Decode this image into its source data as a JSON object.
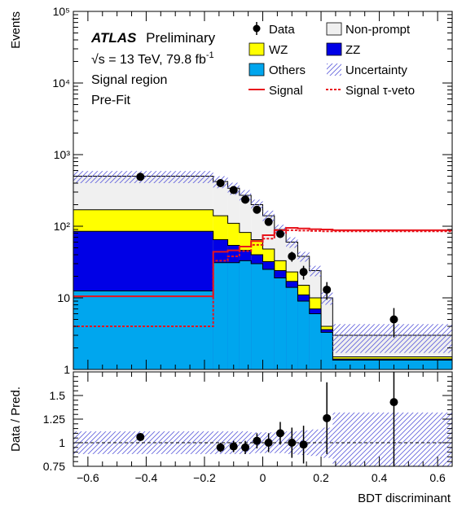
{
  "labels": {
    "atlas": "ATLAS",
    "preliminary": "Preliminary",
    "energy_prefix": "√s = 13 TeV, 79.8 fb",
    "energy_exp": "-1",
    "region": "Signal region",
    "fit": "Pre-Fit",
    "y_top": "Events",
    "y_bottom": "Data / Pred.",
    "x": "BDT discriminant"
  },
  "legend": [
    {
      "key": "data",
      "label": "Data",
      "color": "#000000"
    },
    {
      "key": "nonprompt",
      "label": "Non-prompt",
      "color": "#f0f0f0"
    },
    {
      "key": "wz",
      "label": "WZ",
      "color": "#ffff00"
    },
    {
      "key": "zz",
      "label": "ZZ",
      "color": "#0000e6"
    },
    {
      "key": "others",
      "label": "Others",
      "color": "#00a6ee"
    },
    {
      "key": "unc",
      "label": "Uncertainty",
      "color": "#6666dd"
    },
    {
      "key": "signal",
      "label": "Signal",
      "color": "#e8141c"
    },
    {
      "key": "signal_tauveto",
      "label": "Signal τ-veto",
      "color": "#e8141c"
    }
  ],
  "chart_data": [
    {
      "type": "histogram",
      "panel": "main",
      "x_range": [
        -0.65,
        0.65
      ],
      "y_range": [
        1,
        100000
      ],
      "y_scale": "log",
      "y_ticks": [
        {
          "v": 10,
          "label": "10"
        },
        {
          "v": 100,
          "label": "10²"
        },
        {
          "v": 1000,
          "label": "10³"
        },
        {
          "v": 10000,
          "label": "10⁴"
        },
        {
          "v": 100000,
          "label": "10⁵"
        }
      ],
      "bin_edges": [
        -0.65,
        -0.17,
        -0.12,
        -0.08,
        -0.04,
        0.0,
        0.04,
        0.08,
        0.12,
        0.16,
        0.2,
        0.24,
        0.65
      ],
      "stack": [
        {
          "name": "Others",
          "color": "#00a6ee",
          "cumulative": [
            12.5,
            31,
            31,
            33,
            30,
            25,
            19,
            14,
            9,
            6,
            3.3,
            1.35
          ]
        },
        {
          "name": "ZZ",
          "color": "#0000e6",
          "cumulative": [
            85,
            65,
            54,
            46,
            40,
            32,
            24,
            17,
            11,
            7,
            3.6,
            1.4
          ]
        },
        {
          "name": "WZ",
          "color": "#ffff00",
          "cumulative": [
            170,
            140,
            110,
            82,
            65,
            48,
            33,
            23,
            15,
            10,
            4,
            1.5
          ]
        },
        {
          "name": "Non-prompt",
          "color": "#f0f0f0",
          "cumulative": [
            500,
            420,
            340,
            270,
            200,
            140,
            90,
            60,
            38,
            24,
            10,
            3
          ]
        }
      ],
      "uncertainty_band": {
        "low": [
          400,
          340,
          275,
          220,
          165,
          115,
          75,
          50,
          32,
          20,
          8,
          1.7
        ],
        "high": [
          590,
          500,
          405,
          320,
          235,
          165,
          105,
          70,
          44,
          28,
          12,
          4.3
        ]
      },
      "signal": [
        10.5,
        44,
        46,
        52,
        62,
        75,
        88,
        95,
        93,
        91,
        90,
        88
      ],
      "signal_tauveto": [
        4,
        33,
        38,
        45,
        55,
        67,
        80,
        88,
        87,
        86,
        85,
        85
      ],
      "data": [
        {
          "x": -0.42,
          "y": 490,
          "err": 22
        },
        {
          "x": -0.145,
          "y": 400,
          "err": 20
        },
        {
          "x": -0.1,
          "y": 320,
          "err": 18
        },
        {
          "x": -0.06,
          "y": 235,
          "err": 15
        },
        {
          "x": -0.02,
          "y": 170,
          "err": 13
        },
        {
          "x": 0.02,
          "y": 115,
          "err": 11
        },
        {
          "x": 0.06,
          "y": 78,
          "err": 9
        },
        {
          "x": 0.1,
          "y": 38,
          "err": 6
        },
        {
          "x": 0.14,
          "y": 23,
          "err": 5
        },
        {
          "x": 0.22,
          "y": 13,
          "err": 3.6
        },
        {
          "x": 0.45,
          "y": 5,
          "err": 2.2
        }
      ]
    },
    {
      "type": "ratio",
      "panel": "ratio",
      "x_range": [
        -0.65,
        0.65
      ],
      "y_range": [
        0.75,
        1.75
      ],
      "y_ticks": [
        {
          "v": 0.75,
          "label": "0.75"
        },
        {
          "v": 1,
          "label": "1"
        },
        {
          "v": 1.25,
          "label": "1.25"
        },
        {
          "v": 1.5,
          "label": "1.5"
        }
      ],
      "x_ticks": [
        {
          "v": -0.6,
          "label": "−0.6"
        },
        {
          "v": -0.4,
          "label": "−0.4"
        },
        {
          "v": -0.2,
          "label": "−0.2"
        },
        {
          "v": 0,
          "label": "0"
        },
        {
          "v": 0.2,
          "label": "0.2"
        },
        {
          "v": 0.4,
          "label": "0.4"
        },
        {
          "v": 0.6,
          "label": "0.6"
        }
      ],
      "band_low": [
        0.88,
        0.88,
        0.88,
        0.88,
        0.89,
        0.89,
        0.89,
        0.88,
        0.87,
        0.86,
        0.84,
        0.68
      ],
      "band_high": [
        1.12,
        1.12,
        1.12,
        1.12,
        1.11,
        1.11,
        1.11,
        1.12,
        1.13,
        1.14,
        1.16,
        1.32
      ],
      "points": [
        {
          "x": -0.42,
          "y": 1.06,
          "err": 0.04
        },
        {
          "x": -0.145,
          "y": 0.95,
          "err": 0.05
        },
        {
          "x": -0.1,
          "y": 0.96,
          "err": 0.06
        },
        {
          "x": -0.06,
          "y": 0.95,
          "err": 0.07
        },
        {
          "x": -0.02,
          "y": 1.02,
          "err": 0.08
        },
        {
          "x": 0.02,
          "y": 1.0,
          "err": 0.1
        },
        {
          "x": 0.06,
          "y": 1.1,
          "err": 0.12
        },
        {
          "x": 0.1,
          "y": 1.0,
          "err": 0.16
        },
        {
          "x": 0.14,
          "y": 0.98,
          "err": 0.2
        },
        {
          "x": 0.22,
          "y": 1.26,
          "err": 0.38
        },
        {
          "x": 0.45,
          "y": 1.43,
          "err": 0.7
        }
      ]
    }
  ]
}
